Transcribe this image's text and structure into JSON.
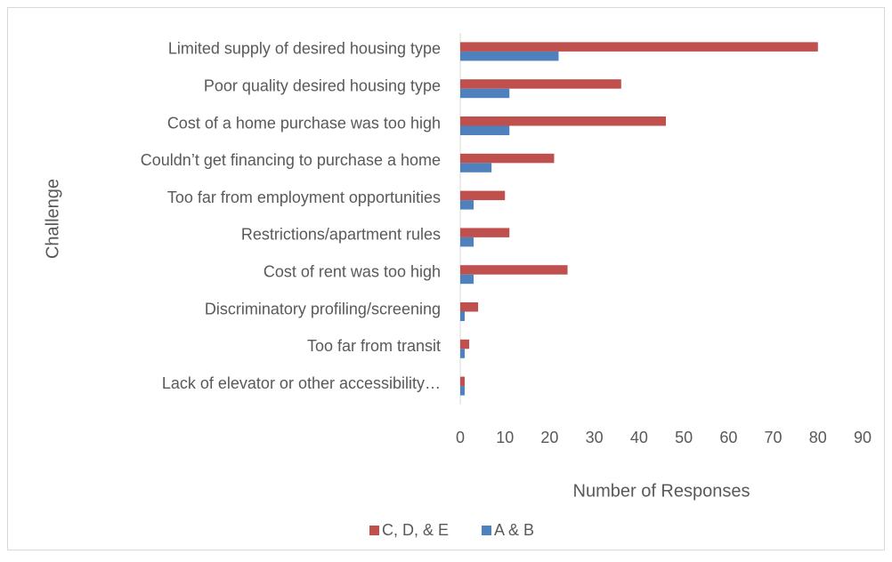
{
  "chart_data": {
    "type": "barh",
    "xlabel": "Number of Responses",
    "ylabel": "Challenge",
    "categories": [
      "Limited supply of desired housing type",
      "Poor quality desired housing type",
      "Cost of a home purchase was too high",
      "Couldn’t get financing to purchase a home",
      "Too far from employment opportunities",
      "Restrictions/apartment rules",
      "Cost of rent was too high",
      "Discriminatory profiling/screening",
      "Too far from transit",
      "Lack of elevator or other accessibility…"
    ],
    "series": [
      {
        "name": "C, D, & E",
        "color": "#c0504d",
        "values": [
          80,
          36,
          46,
          21,
          10,
          11,
          24,
          4,
          2,
          1
        ]
      },
      {
        "name": "A & B",
        "color": "#4f81bd",
        "values": [
          22,
          11,
          11,
          7,
          3,
          3,
          3,
          1,
          1,
          1
        ]
      }
    ],
    "xlim": [
      0,
      90
    ],
    "xticks": [
      0,
      10,
      20,
      30,
      40,
      50,
      60,
      70,
      80,
      90
    ],
    "grid": false,
    "legend": "bottom"
  }
}
